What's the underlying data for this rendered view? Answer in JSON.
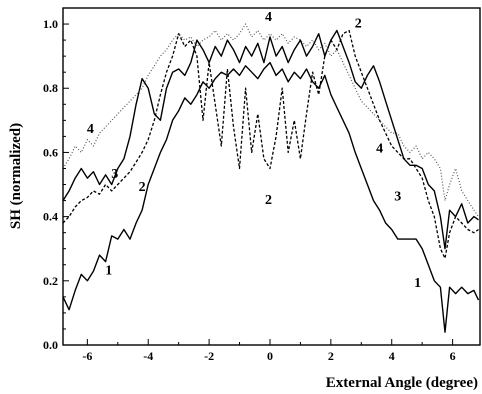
{
  "chart_data": {
    "type": "line",
    "xlabel": "External Angle (degree)",
    "ylabel": "SH (normalized)",
    "xlim": [
      -6.8,
      6.9
    ],
    "ylim": [
      0.0,
      1.05
    ],
    "x_ticks": [
      -6,
      -4,
      -2,
      0,
      2,
      4,
      6
    ],
    "x_tick_labels": [
      "-6",
      "-4",
      "-2",
      "0",
      "2",
      "4",
      "6"
    ],
    "y_ticks": [
      0.0,
      0.2,
      0.4,
      0.6,
      0.8,
      1.0
    ],
    "y_tick_labels": [
      "0.0",
      "0.2",
      "0.4",
      "0.6",
      "0.8",
      "1.0"
    ],
    "grid": false,
    "series": [
      {
        "name": "1",
        "style": "solid",
        "color": "#000000",
        "width": 1.4,
        "points": [
          [
            -6.8,
            0.15
          ],
          [
            -6.6,
            0.11
          ],
          [
            -6.4,
            0.17
          ],
          [
            -6.2,
            0.22
          ],
          [
            -6.0,
            0.2
          ],
          [
            -5.8,
            0.23
          ],
          [
            -5.6,
            0.28
          ],
          [
            -5.4,
            0.26
          ],
          [
            -5.2,
            0.34
          ],
          [
            -5.0,
            0.33
          ],
          [
            -4.8,
            0.36
          ],
          [
            -4.6,
            0.33
          ],
          [
            -4.4,
            0.38
          ],
          [
            -4.2,
            0.42
          ],
          [
            -4.0,
            0.5
          ],
          [
            -3.8,
            0.55
          ],
          [
            -3.6,
            0.6
          ],
          [
            -3.4,
            0.64
          ],
          [
            -3.2,
            0.7
          ],
          [
            -3.0,
            0.73
          ],
          [
            -2.8,
            0.77
          ],
          [
            -2.6,
            0.75
          ],
          [
            -2.4,
            0.78
          ],
          [
            -2.2,
            0.82
          ],
          [
            -2.0,
            0.8
          ],
          [
            -1.8,
            0.83
          ],
          [
            -1.6,
            0.85
          ],
          [
            -1.4,
            0.84
          ],
          [
            -1.2,
            0.86
          ],
          [
            -1.0,
            0.84
          ],
          [
            -0.8,
            0.87
          ],
          [
            -0.6,
            0.85
          ],
          [
            -0.4,
            0.83
          ],
          [
            -0.2,
            0.86
          ],
          [
            0.0,
            0.88
          ],
          [
            0.2,
            0.84
          ],
          [
            0.4,
            0.86
          ],
          [
            0.6,
            0.82
          ],
          [
            0.8,
            0.85
          ],
          [
            1.0,
            0.83
          ],
          [
            1.2,
            0.86
          ],
          [
            1.4,
            0.82
          ],
          [
            1.6,
            0.8
          ],
          [
            1.8,
            0.84
          ],
          [
            2.0,
            0.78
          ],
          [
            2.2,
            0.74
          ],
          [
            2.4,
            0.7
          ],
          [
            2.6,
            0.66
          ],
          [
            2.8,
            0.6
          ],
          [
            3.0,
            0.55
          ],
          [
            3.2,
            0.5
          ],
          [
            3.4,
            0.45
          ],
          [
            3.6,
            0.42
          ],
          [
            3.8,
            0.38
          ],
          [
            4.0,
            0.36
          ],
          [
            4.2,
            0.33
          ],
          [
            4.4,
            0.33
          ],
          [
            4.6,
            0.33
          ],
          [
            4.8,
            0.33
          ],
          [
            5.0,
            0.3
          ],
          [
            5.2,
            0.25
          ],
          [
            5.4,
            0.2
          ],
          [
            5.6,
            0.18
          ],
          [
            5.75,
            0.04
          ],
          [
            5.9,
            0.18
          ],
          [
            6.1,
            0.16
          ],
          [
            6.3,
            0.18
          ],
          [
            6.5,
            0.16
          ],
          [
            6.7,
            0.17
          ],
          [
            6.85,
            0.14
          ]
        ]
      },
      {
        "name": "2",
        "style": "dash",
        "color": "#000000",
        "width": 1.3,
        "points": [
          [
            -6.8,
            0.38
          ],
          [
            -6.6,
            0.4
          ],
          [
            -6.4,
            0.43
          ],
          [
            -6.2,
            0.45
          ],
          [
            -6.0,
            0.46
          ],
          [
            -5.8,
            0.48
          ],
          [
            -5.6,
            0.47
          ],
          [
            -5.4,
            0.5
          ],
          [
            -5.2,
            0.48
          ],
          [
            -5.0,
            0.5
          ],
          [
            -4.8,
            0.52
          ],
          [
            -4.6,
            0.54
          ],
          [
            -4.4,
            0.57
          ],
          [
            -4.2,
            0.6
          ],
          [
            -4.0,
            0.64
          ],
          [
            -3.8,
            0.7
          ],
          [
            -3.6,
            0.78
          ],
          [
            -3.4,
            0.85
          ],
          [
            -3.2,
            0.9
          ],
          [
            -3.0,
            0.97
          ],
          [
            -2.8,
            0.93
          ],
          [
            -2.6,
            0.95
          ],
          [
            -2.4,
            0.9
          ],
          [
            -2.2,
            0.7
          ],
          [
            -2.0,
            0.88
          ],
          [
            -1.8,
            0.75
          ],
          [
            -1.6,
            0.62
          ],
          [
            -1.4,
            0.86
          ],
          [
            -1.2,
            0.68
          ],
          [
            -1.0,
            0.55
          ],
          [
            -0.8,
            0.8
          ],
          [
            -0.6,
            0.6
          ],
          [
            -0.4,
            0.72
          ],
          [
            -0.2,
            0.58
          ],
          [
            0.0,
            0.55
          ],
          [
            0.2,
            0.65
          ],
          [
            0.4,
            0.8
          ],
          [
            0.6,
            0.6
          ],
          [
            0.8,
            0.7
          ],
          [
            1.0,
            0.58
          ],
          [
            1.2,
            0.72
          ],
          [
            1.4,
            0.85
          ],
          [
            1.6,
            0.78
          ],
          [
            1.8,
            0.9
          ],
          [
            2.0,
            0.95
          ],
          [
            2.2,
            0.92
          ],
          [
            2.4,
            0.97
          ],
          [
            2.6,
            0.98
          ],
          [
            2.8,
            0.9
          ],
          [
            3.0,
            0.85
          ],
          [
            3.2,
            0.8
          ],
          [
            3.4,
            0.75
          ],
          [
            3.6,
            0.7
          ],
          [
            3.8,
            0.66
          ],
          [
            4.0,
            0.62
          ],
          [
            4.2,
            0.6
          ],
          [
            4.4,
            0.58
          ],
          [
            4.6,
            0.58
          ],
          [
            4.8,
            0.55
          ],
          [
            5.0,
            0.52
          ],
          [
            5.2,
            0.45
          ],
          [
            5.4,
            0.4
          ],
          [
            5.6,
            0.3
          ],
          [
            5.75,
            0.27
          ],
          [
            5.9,
            0.35
          ],
          [
            6.1,
            0.4
          ],
          [
            6.3,
            0.38
          ],
          [
            6.5,
            0.36
          ],
          [
            6.7,
            0.35
          ],
          [
            6.85,
            0.36
          ]
        ]
      },
      {
        "name": "3",
        "style": "solid",
        "color": "#000000",
        "width": 1.4,
        "points": [
          [
            -6.8,
            0.45
          ],
          [
            -6.6,
            0.48
          ],
          [
            -6.4,
            0.52
          ],
          [
            -6.2,
            0.55
          ],
          [
            -6.0,
            0.52
          ],
          [
            -5.8,
            0.54
          ],
          [
            -5.6,
            0.5
          ],
          [
            -5.4,
            0.53
          ],
          [
            -5.2,
            0.5
          ],
          [
            -5.0,
            0.55
          ],
          [
            -4.8,
            0.58
          ],
          [
            -4.6,
            0.65
          ],
          [
            -4.4,
            0.75
          ],
          [
            -4.2,
            0.83
          ],
          [
            -4.0,
            0.8
          ],
          [
            -3.8,
            0.72
          ],
          [
            -3.6,
            0.7
          ],
          [
            -3.4,
            0.8
          ],
          [
            -3.2,
            0.85
          ],
          [
            -3.0,
            0.86
          ],
          [
            -2.8,
            0.84
          ],
          [
            -2.6,
            0.88
          ],
          [
            -2.4,
            0.95
          ],
          [
            -2.2,
            0.92
          ],
          [
            -2.0,
            0.88
          ],
          [
            -1.8,
            0.93
          ],
          [
            -1.6,
            0.9
          ],
          [
            -1.4,
            0.95
          ],
          [
            -1.2,
            0.92
          ],
          [
            -1.0,
            0.88
          ],
          [
            -0.8,
            0.93
          ],
          [
            -0.6,
            0.9
          ],
          [
            -0.4,
            0.94
          ],
          [
            -0.2,
            0.88
          ],
          [
            0.0,
            0.96
          ],
          [
            0.2,
            0.9
          ],
          [
            0.4,
            0.93
          ],
          [
            0.6,
            0.88
          ],
          [
            0.8,
            0.92
          ],
          [
            1.0,
            0.95
          ],
          [
            1.2,
            0.9
          ],
          [
            1.4,
            0.93
          ],
          [
            1.6,
            0.97
          ],
          [
            1.8,
            0.9
          ],
          [
            2.0,
            0.95
          ],
          [
            2.2,
            0.98
          ],
          [
            2.4,
            0.93
          ],
          [
            2.6,
            0.88
          ],
          [
            2.8,
            0.82
          ],
          [
            3.0,
            0.8
          ],
          [
            3.2,
            0.84
          ],
          [
            3.4,
            0.87
          ],
          [
            3.6,
            0.82
          ],
          [
            3.8,
            0.76
          ],
          [
            4.0,
            0.7
          ],
          [
            4.2,
            0.64
          ],
          [
            4.4,
            0.58
          ],
          [
            4.6,
            0.56
          ],
          [
            4.8,
            0.56
          ],
          [
            5.0,
            0.55
          ],
          [
            5.2,
            0.5
          ],
          [
            5.4,
            0.48
          ],
          [
            5.6,
            0.4
          ],
          [
            5.75,
            0.3
          ],
          [
            5.9,
            0.42
          ],
          [
            6.1,
            0.4
          ],
          [
            6.3,
            0.44
          ],
          [
            6.5,
            0.38
          ],
          [
            6.7,
            0.4
          ],
          [
            6.85,
            0.39
          ]
        ]
      },
      {
        "name": "4",
        "style": "dot",
        "color": "#555555",
        "width": 1.2,
        "points": [
          [
            -6.8,
            0.55
          ],
          [
            -6.6,
            0.58
          ],
          [
            -6.4,
            0.62
          ],
          [
            -6.2,
            0.6
          ],
          [
            -6.0,
            0.64
          ],
          [
            -5.8,
            0.62
          ],
          [
            -5.6,
            0.66
          ],
          [
            -5.4,
            0.68
          ],
          [
            -5.2,
            0.7
          ],
          [
            -5.0,
            0.72
          ],
          [
            -4.8,
            0.74
          ],
          [
            -4.6,
            0.76
          ],
          [
            -4.4,
            0.78
          ],
          [
            -4.2,
            0.8
          ],
          [
            -4.0,
            0.84
          ],
          [
            -3.8,
            0.87
          ],
          [
            -3.6,
            0.9
          ],
          [
            -3.4,
            0.92
          ],
          [
            -3.2,
            0.95
          ],
          [
            -3.0,
            0.97
          ],
          [
            -2.8,
            0.95
          ],
          [
            -2.6,
            0.96
          ],
          [
            -2.4,
            0.93
          ],
          [
            -2.2,
            0.95
          ],
          [
            -2.0,
            0.96
          ],
          [
            -1.8,
            0.98
          ],
          [
            -1.6,
            0.95
          ],
          [
            -1.4,
            0.97
          ],
          [
            -1.2,
            0.95
          ],
          [
            -1.0,
            0.97
          ],
          [
            -0.8,
            1.0
          ],
          [
            -0.6,
            0.96
          ],
          [
            -0.4,
            0.98
          ],
          [
            -0.2,
            0.95
          ],
          [
            0.0,
            0.97
          ],
          [
            0.2,
            0.95
          ],
          [
            0.4,
            0.97
          ],
          [
            0.6,
            0.94
          ],
          [
            0.8,
            0.96
          ],
          [
            1.0,
            0.95
          ],
          [
            1.2,
            0.93
          ],
          [
            1.4,
            0.95
          ],
          [
            1.6,
            0.92
          ],
          [
            1.8,
            0.94
          ],
          [
            2.0,
            0.9
          ],
          [
            2.2,
            0.92
          ],
          [
            2.4,
            0.88
          ],
          [
            2.6,
            0.84
          ],
          [
            2.8,
            0.8
          ],
          [
            3.0,
            0.76
          ],
          [
            3.2,
            0.74
          ],
          [
            3.4,
            0.72
          ],
          [
            3.6,
            0.7
          ],
          [
            3.8,
            0.68
          ],
          [
            4.0,
            0.66
          ],
          [
            4.2,
            0.66
          ],
          [
            4.4,
            0.62
          ],
          [
            4.6,
            0.6
          ],
          [
            4.8,
            0.62
          ],
          [
            5.0,
            0.58
          ],
          [
            5.2,
            0.6
          ],
          [
            5.4,
            0.58
          ],
          [
            5.6,
            0.55
          ],
          [
            5.75,
            0.45
          ],
          [
            5.9,
            0.5
          ],
          [
            6.1,
            0.55
          ],
          [
            6.3,
            0.48
          ],
          [
            6.5,
            0.45
          ],
          [
            6.7,
            0.42
          ],
          [
            6.85,
            0.4
          ]
        ]
      }
    ],
    "annotations": [
      {
        "text": "1",
        "x": -5.3,
        "y": 0.22
      },
      {
        "text": "2",
        "x": -4.2,
        "y": 0.48
      },
      {
        "text": "3",
        "x": -5.1,
        "y": 0.52
      },
      {
        "text": "4",
        "x": -5.9,
        "y": 0.66
      },
      {
        "text": "4",
        "x": -0.05,
        "y": 1.01
      },
      {
        "text": "2",
        "x": -0.05,
        "y": 0.44
      },
      {
        "text": "2",
        "x": 2.9,
        "y": 0.99
      },
      {
        "text": "4",
        "x": 3.6,
        "y": 0.6
      },
      {
        "text": "3",
        "x": 4.2,
        "y": 0.45
      },
      {
        "text": "1",
        "x": 4.85,
        "y": 0.18
      }
    ]
  }
}
